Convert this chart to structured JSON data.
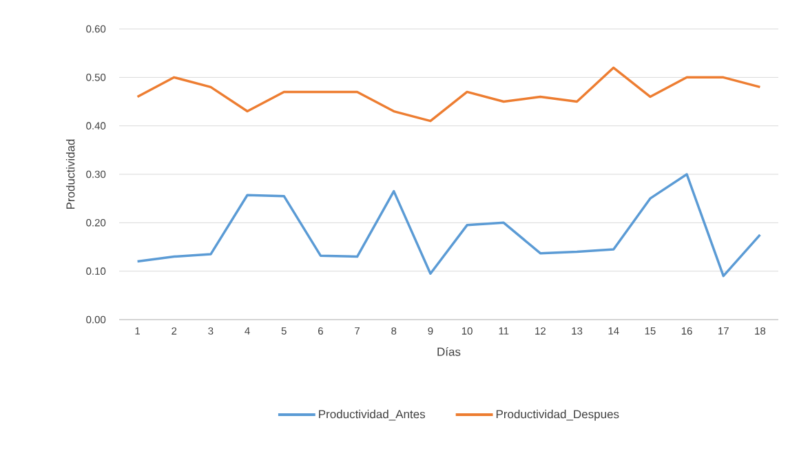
{
  "chart_data": {
    "type": "line",
    "xlabel": "Días",
    "ylabel": "Productividad",
    "categories": [
      "1",
      "2",
      "3",
      "4",
      "5",
      "6",
      "7",
      "8",
      "9",
      "10",
      "11",
      "12",
      "13",
      "14",
      "15",
      "16",
      "17",
      "18"
    ],
    "series": [
      {
        "name": "Productividad_Antes",
        "color": "#5b9bd5",
        "values": [
          0.12,
          0.13,
          0.135,
          0.257,
          0.255,
          0.132,
          0.13,
          0.265,
          0.095,
          0.195,
          0.2,
          0.137,
          0.14,
          0.145,
          0.25,
          0.3,
          0.09,
          0.175
        ]
      },
      {
        "name": "Productividad_Despues",
        "color": "#ed7d31",
        "values": [
          0.46,
          0.5,
          0.48,
          0.43,
          0.47,
          0.47,
          0.47,
          0.43,
          0.41,
          0.47,
          0.45,
          0.46,
          0.45,
          0.52,
          0.46,
          0.5,
          0.5,
          0.48
        ]
      }
    ],
    "ylim": [
      0,
      0.6
    ],
    "yticks": [
      {
        "value": 0,
        "label": "0.00"
      },
      {
        "value": 0.1,
        "label": "0.10"
      },
      {
        "value": 0.2,
        "label": "0.20"
      },
      {
        "value": 0.3,
        "label": "0.30"
      },
      {
        "value": 0.4,
        "label": "0.40"
      },
      {
        "value": 0.5,
        "label": "0.50"
      },
      {
        "value": 0.6,
        "label": "0.60"
      }
    ],
    "grid": "y",
    "legend": "bottom",
    "marker": "none",
    "line_style": "solid"
  }
}
